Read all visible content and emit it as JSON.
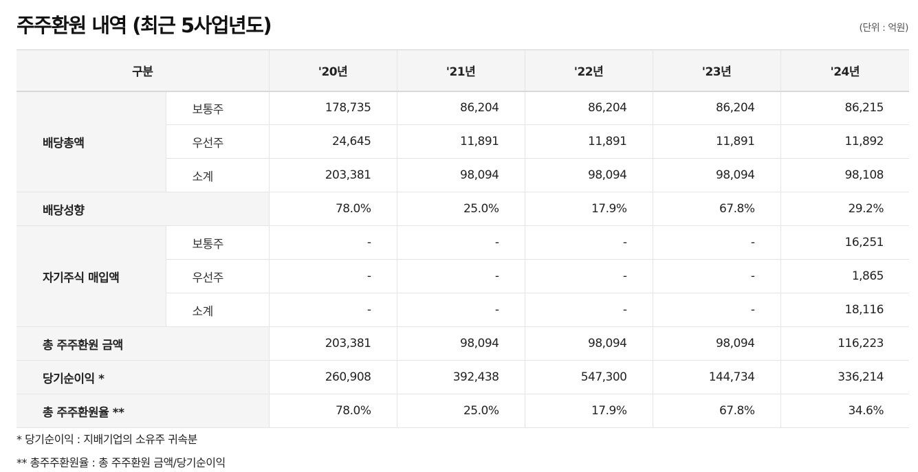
{
  "title": "주주환원 내역 (최근 5사업년도)",
  "unit": "(단위 : 억원)",
  "table": {
    "header": {
      "category": "구분",
      "years": [
        "'20년",
        "'21년",
        "'22년",
        "'23년",
        "'24년"
      ]
    },
    "dividend": {
      "label": "배당총액",
      "rows": [
        {
          "sub": "보통주",
          "values": [
            "178,735",
            "86,204",
            "86,204",
            "86,204",
            "86,215"
          ]
        },
        {
          "sub": "우선주",
          "values": [
            "24,645",
            "11,891",
            "11,891",
            "11,891",
            "11,892"
          ]
        },
        {
          "sub": "소계",
          "values": [
            "203,381",
            "98,094",
            "98,094",
            "98,094",
            "98,108"
          ]
        }
      ]
    },
    "payout": {
      "label": "배당성향",
      "values": [
        "78.0%",
        "25.0%",
        "17.9%",
        "67.8%",
        "29.2%"
      ]
    },
    "buyback": {
      "label": "자기주식 매입액",
      "rows": [
        {
          "sub": "보통주",
          "values": [
            "-",
            "-",
            "-",
            "-",
            "16,251"
          ]
        },
        {
          "sub": "우선주",
          "values": [
            "-",
            "-",
            "-",
            "-",
            "1,865"
          ]
        },
        {
          "sub": "소계",
          "values": [
            "-",
            "-",
            "-",
            "-",
            "18,116"
          ]
        }
      ]
    },
    "total_return": {
      "label": "총 주주환원 금액",
      "values": [
        "203,381",
        "98,094",
        "98,094",
        "98,094",
        "116,223"
      ]
    },
    "net_income": {
      "label": "당기순이익 *",
      "values": [
        "260,908",
        "392,438",
        "547,300",
        "144,734",
        "336,214"
      ]
    },
    "return_ratio": {
      "label": "총 주주환원율 **",
      "values": [
        "78.0%",
        "25.0%",
        "17.9%",
        "67.8%",
        "34.6%"
      ]
    }
  },
  "notes": [
    "* 당기순이익 : 지배기업의 소유주 귀속분",
    "** 총주주환원율 : 총 주주환원 금액/당기순이익"
  ]
}
